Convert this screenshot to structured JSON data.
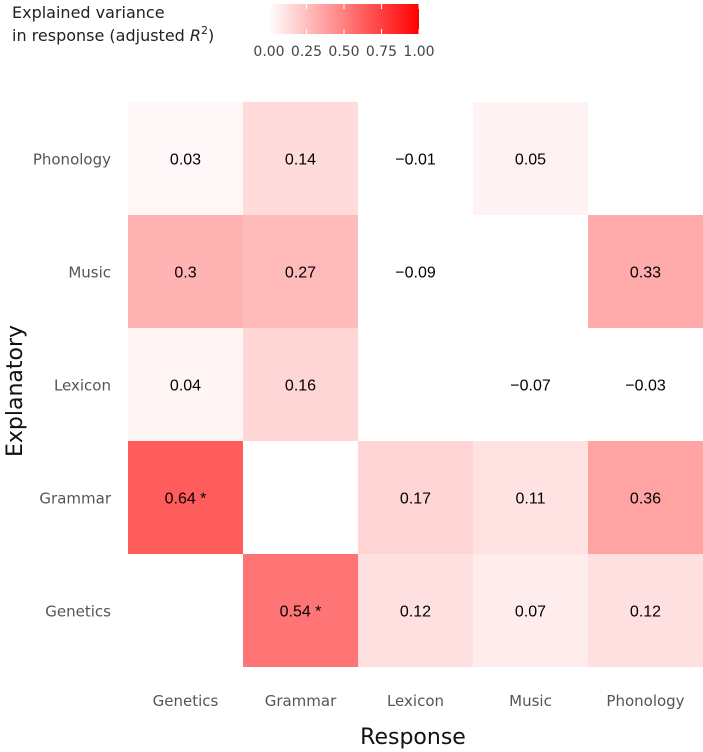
{
  "chart_data": {
    "type": "heatmap",
    "xlabel": "Response",
    "ylabel": "Explanatory",
    "x_categories": [
      "Genetics",
      "Grammar",
      "Lexicon",
      "Music",
      "Phonology"
    ],
    "y_categories": [
      "Genetics",
      "Grammar",
      "Lexicon",
      "Music",
      "Phonology"
    ],
    "color_scale": {
      "min": 0,
      "max": 1,
      "low_color": "#ffffff",
      "high_color": "#ff0000"
    },
    "legend": {
      "title_line1": "Explained variance",
      "title_line2": "in response (adjusted ",
      "title_symbol": "R",
      "title_superscript": "2",
      "title_close": ")",
      "ticks": [
        "0.00",
        "0.25",
        "0.50",
        "0.75",
        "1.00"
      ],
      "tick_values": [
        0,
        0.25,
        0.5,
        0.75,
        1
      ]
    },
    "cells": [
      {
        "x": "Genetics",
        "y": "Phonology",
        "value": 0.03,
        "label": "0.03"
      },
      {
        "x": "Grammar",
        "y": "Phonology",
        "value": 0.14,
        "label": "0.14"
      },
      {
        "x": "Lexicon",
        "y": "Phonology",
        "value": -0.01,
        "label": "−0.01"
      },
      {
        "x": "Music",
        "y": "Phonology",
        "value": 0.05,
        "label": "0.05"
      },
      {
        "x": "Genetics",
        "y": "Music",
        "value": 0.3,
        "label": "0.3"
      },
      {
        "x": "Grammar",
        "y": "Music",
        "value": 0.27,
        "label": "0.27"
      },
      {
        "x": "Lexicon",
        "y": "Music",
        "value": -0.09,
        "label": "−0.09"
      },
      {
        "x": "Phonology",
        "y": "Music",
        "value": 0.33,
        "label": "0.33"
      },
      {
        "x": "Genetics",
        "y": "Lexicon",
        "value": 0.04,
        "label": "0.04"
      },
      {
        "x": "Grammar",
        "y": "Lexicon",
        "value": 0.16,
        "label": "0.16"
      },
      {
        "x": "Music",
        "y": "Lexicon",
        "value": -0.07,
        "label": "−0.07"
      },
      {
        "x": "Phonology",
        "y": "Lexicon",
        "value": -0.03,
        "label": "−0.03"
      },
      {
        "x": "Genetics",
        "y": "Grammar",
        "value": 0.64,
        "label": "0.64 *"
      },
      {
        "x": "Lexicon",
        "y": "Grammar",
        "value": 0.17,
        "label": "0.17"
      },
      {
        "x": "Music",
        "y": "Grammar",
        "value": 0.11,
        "label": "0.11"
      },
      {
        "x": "Phonology",
        "y": "Grammar",
        "value": 0.36,
        "label": "0.36"
      },
      {
        "x": "Grammar",
        "y": "Genetics",
        "value": 0.54,
        "label": "0.54 *"
      },
      {
        "x": "Lexicon",
        "y": "Genetics",
        "value": 0.12,
        "label": "0.12"
      },
      {
        "x": "Music",
        "y": "Genetics",
        "value": 0.07,
        "label": "0.07"
      },
      {
        "x": "Phonology",
        "y": "Genetics",
        "value": 0.12,
        "label": "0.12"
      }
    ]
  }
}
